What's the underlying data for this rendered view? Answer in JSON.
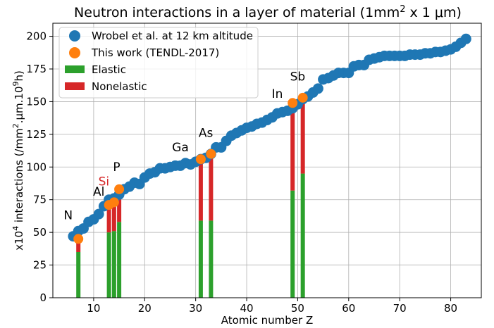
{
  "chart_data": {
    "type": "scatter",
    "title": "Neutron interactions in a layer of material (1mm",
    "title_sup": "2",
    "title_end": " x 1 μm)",
    "xlabel": "Atomic number Z",
    "ylabel_pre": "x10",
    "ylabel_sup1": "4",
    "ylabel_mid": " interactions (/mm",
    "ylabel_sup2": "2",
    "ylabel_mid2": ".μm.10",
    "ylabel_sup3": "9",
    "ylabel_end": "h)",
    "xlim": [
      2,
      86
    ],
    "ylim": [
      0,
      210
    ],
    "x_ticks": [
      10,
      20,
      30,
      40,
      50,
      60,
      70,
      80
    ],
    "y_ticks": [
      0,
      25,
      50,
      75,
      100,
      125,
      150,
      175,
      200
    ],
    "grid": true,
    "legend_position": "top-left",
    "legend": [
      {
        "label": "Wrobel et al. at 12 km altitude",
        "marker": "circle",
        "color": "#1f77b4"
      },
      {
        "label": "This work (TENDL-2017)",
        "marker": "circle",
        "color": "#ff7f0e"
      },
      {
        "label": "Elastic",
        "marker": "patch",
        "color": "#2ca02c"
      },
      {
        "label": "Nonelastic",
        "marker": "patch",
        "color": "#d62728"
      }
    ],
    "series": [
      {
        "name": "Wrobel et al. at 12 km altitude",
        "color": "#1f77b4",
        "points": [
          [
            6,
            47
          ],
          [
            7,
            51
          ],
          [
            8,
            53
          ],
          [
            9,
            58
          ],
          [
            10,
            60
          ],
          [
            11,
            64
          ],
          [
            12,
            70
          ],
          [
            13,
            75
          ],
          [
            14,
            76
          ],
          [
            15,
            79
          ],
          [
            16,
            83
          ],
          [
            17,
            85
          ],
          [
            18,
            88
          ],
          [
            19,
            87
          ],
          [
            20,
            92
          ],
          [
            21,
            95
          ],
          [
            22,
            96
          ],
          [
            23,
            99
          ],
          [
            24,
            99
          ],
          [
            25,
            100
          ],
          [
            26,
            101
          ],
          [
            27,
            101
          ],
          [
            28,
            103
          ],
          [
            29,
            102
          ],
          [
            30,
            104
          ],
          [
            31,
            106
          ],
          [
            32,
            107
          ],
          [
            33,
            110
          ],
          [
            34,
            115
          ],
          [
            35,
            115
          ],
          [
            36,
            120
          ],
          [
            37,
            124
          ],
          [
            38,
            126
          ],
          [
            39,
            128
          ],
          [
            40,
            130
          ],
          [
            41,
            131
          ],
          [
            42,
            133
          ],
          [
            43,
            134
          ],
          [
            44,
            136
          ],
          [
            45,
            138
          ],
          [
            46,
            141
          ],
          [
            47,
            142
          ],
          [
            48,
            143
          ],
          [
            49,
            145
          ],
          [
            50,
            148
          ],
          [
            51,
            152
          ],
          [
            52,
            154
          ],
          [
            53,
            157
          ],
          [
            54,
            160
          ],
          [
            55,
            167
          ],
          [
            56,
            168
          ],
          [
            57,
            170
          ],
          [
            58,
            172
          ],
          [
            59,
            172
          ],
          [
            60,
            172
          ],
          [
            61,
            177
          ],
          [
            62,
            178
          ],
          [
            63,
            178
          ],
          [
            64,
            182
          ],
          [
            65,
            183
          ],
          [
            66,
            184
          ],
          [
            67,
            185
          ],
          [
            68,
            185
          ],
          [
            69,
            185
          ],
          [
            70,
            185
          ],
          [
            71,
            185
          ],
          [
            72,
            186
          ],
          [
            73,
            186
          ],
          [
            74,
            186
          ],
          [
            75,
            187
          ],
          [
            76,
            187
          ],
          [
            77,
            188
          ],
          [
            78,
            188
          ],
          [
            79,
            189
          ],
          [
            80,
            190
          ],
          [
            81,
            192
          ],
          [
            82,
            195
          ],
          [
            83,
            198
          ]
        ]
      },
      {
        "name": "This work (TENDL-2017)",
        "color": "#ff7f0e",
        "points": [
          [
            7,
            45
          ],
          [
            13,
            71
          ],
          [
            14,
            73
          ],
          [
            15,
            83
          ],
          [
            31,
            106
          ],
          [
            33,
            110
          ],
          [
            49,
            149
          ],
          [
            51,
            153
          ]
        ]
      }
    ],
    "bars": [
      {
        "z": 7,
        "elastic": 35,
        "nonelastic": 10
      },
      {
        "z": 13,
        "elastic": 50,
        "nonelastic": 21
      },
      {
        "z": 14,
        "elastic": 51,
        "nonelastic": 22
      },
      {
        "z": 15,
        "elastic": 58,
        "nonelastic": 25
      },
      {
        "z": 31,
        "elastic": 59,
        "nonelastic": 47
      },
      {
        "z": 33,
        "elastic": 59,
        "nonelastic": 51
      },
      {
        "z": 49,
        "elastic": 82,
        "nonelastic": 67
      },
      {
        "z": 51,
        "elastic": 95,
        "nonelastic": 58
      }
    ],
    "bar_colors": {
      "elastic": "#2ca02c",
      "nonelastic": "#d62728"
    },
    "annotations": [
      {
        "text": "N",
        "x": 5,
        "y": 60,
        "color": "#000000"
      },
      {
        "text": "Al",
        "x": 11,
        "y": 78,
        "color": "#000000"
      },
      {
        "text": "Si",
        "x": 12,
        "y": 86,
        "color": "#d62728"
      },
      {
        "text": "P",
        "x": 14.5,
        "y": 97,
        "color": "#000000"
      },
      {
        "text": "Ga",
        "x": 27,
        "y": 112,
        "color": "#000000"
      },
      {
        "text": "As",
        "x": 32,
        "y": 123,
        "color": "#000000"
      },
      {
        "text": "In",
        "x": 46,
        "y": 153,
        "color": "#000000"
      },
      {
        "text": "Sb",
        "x": 50,
        "y": 166,
        "color": "#000000"
      }
    ]
  }
}
